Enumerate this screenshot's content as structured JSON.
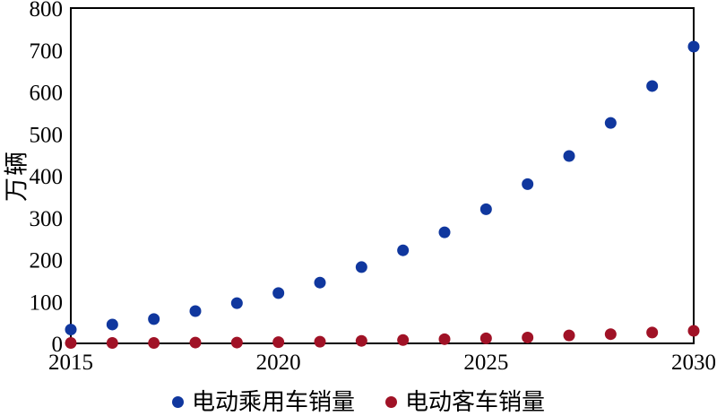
{
  "chart_data": {
    "type": "scatter",
    "title": "",
    "y_axis_title": "万辆",
    "xlabel": "",
    "xlim": [
      2015,
      2030
    ],
    "ylim": [
      0,
      800
    ],
    "x_ticks": [
      2015,
      2020,
      2025,
      2030
    ],
    "y_ticks": [
      0,
      100,
      200,
      300,
      400,
      500,
      600,
      700,
      800
    ],
    "grid": false,
    "legend_position": "bottom",
    "x": [
      2015,
      2016,
      2017,
      2018,
      2019,
      2020,
      2021,
      2022,
      2023,
      2024,
      2025,
      2026,
      2027,
      2028,
      2029,
      2030
    ],
    "series": [
      {
        "name": "电动乘用车销量",
        "color": "#10379e",
        "marker": "circle",
        "values": [
          33,
          45,
          58,
          77,
          96,
          120,
          145,
          182,
          222,
          265,
          320,
          380,
          447,
          526,
          614,
          708
        ]
      },
      {
        "name": "电动客车销量",
        "color": "#a01226",
        "marker": "circle",
        "values": [
          1,
          1,
          1,
          2,
          2,
          3,
          4,
          6,
          8,
          10,
          12,
          14,
          19,
          22,
          26,
          30
        ]
      }
    ]
  },
  "colors": {
    "axis": "#000000",
    "text": "#000000",
    "background": "#ffffff"
  }
}
